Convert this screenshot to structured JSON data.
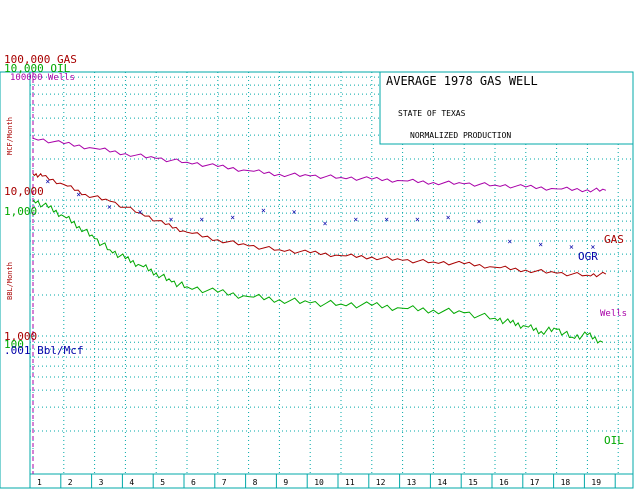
{
  "title_box": {
    "title": "AVERAGE 1978 GAS WELL",
    "line1": "STATE OF TEXAS",
    "line2": "NORMALIZED PRODUCTION"
  },
  "top_labels": {
    "gas": "100,000 GAS",
    "oil": "10,000 OIL",
    "wells": "100000 Wells"
  },
  "y_labels": {
    "mcf_axis": "MCF/Month",
    "bbl_axis": "BBL/Month",
    "gas_10000": "10,000",
    "oil_1000": "1,000",
    "gas_1000": "1,000",
    "oil_100": "100",
    "ogr": ".001 Bbl/Mcf"
  },
  "colors": {
    "grid": "#00a8a8",
    "gas": "#a80000",
    "oil": "#00a800",
    "wells": "#a800a8",
    "ogr": "#0000a8",
    "frame": "#00a8a8"
  },
  "chart_data": {
    "type": "line",
    "x": [
      1,
      2,
      3,
      4,
      5,
      6,
      7,
      8,
      9,
      10,
      11,
      12,
      13,
      14,
      15,
      16,
      17,
      18,
      19
    ],
    "xlabel_ticks": [
      "1",
      "2",
      "3",
      "4",
      "5",
      "6",
      "7",
      "8",
      "9",
      "10",
      "11",
      "12",
      "13",
      "14",
      "15",
      "16",
      "17",
      "18",
      "19"
    ],
    "series": [
      {
        "name": "GAS",
        "color": "#a80000",
        "x": [
          1.0,
          1.3,
          2.0,
          2.7,
          3.5,
          4.5,
          5.3,
          6.0,
          7.0,
          8.0,
          9.0,
          10.0,
          11.0,
          12.0,
          13.0,
          14.0,
          15.0,
          16.0,
          17.0,
          18.0,
          19.0,
          19.6
        ],
        "values": [
          15500,
          15000,
          13000,
          11000,
          9800,
          8000,
          6600,
          5800,
          5100,
          4600,
          4300,
          4100,
          3900,
          3800,
          3600,
          3500,
          3400,
          3200,
          3050,
          2900,
          2800,
          2850
        ]
      },
      {
        "name": "Wells",
        "color": "#a800a8",
        "x": [
          1.0,
          2.0,
          3.0,
          4.0,
          5.0,
          6.0,
          7.0,
          8.0,
          9.0,
          10.0,
          11.0,
          12.0,
          13.0,
          14.0,
          15.0,
          16.0,
          17.0,
          18.0,
          19.0,
          19.6
        ],
        "values": [
          2900,
          2650,
          2450,
          2250,
          2080,
          1950,
          1820,
          1700,
          1600,
          1560,
          1520,
          1480,
          1440,
          1400,
          1370,
          1340,
          1300,
          1260,
          1240,
          1230
        ]
      },
      {
        "name": "OIL",
        "color": "#00a800",
        "x": [
          1.0,
          1.5,
          2.0,
          2.5,
          3.0,
          3.5,
          4.0,
          4.5,
          5.0,
          5.5,
          6.0,
          7.0,
          8.0,
          9.0,
          10.0,
          11.0,
          12.0,
          13.0,
          14.0,
          15.0,
          16.0,
          16.5,
          17.0,
          17.5,
          18.0,
          18.5,
          19.0,
          19.5
        ],
        "values": [
          1000,
          880,
          760,
          640,
          520,
          430,
          370,
          330,
          290,
          250,
          230,
          210,
          195,
          185,
          175,
          172,
          168,
          160,
          155,
          148,
          135,
          125,
          118,
          108,
          112,
          98,
          102,
          90
        ]
      },
      {
        "name": "OGR",
        "color": "#0000a8",
        "x": [
          1.5,
          2.5,
          3.5,
          4.5,
          5.5,
          6.5,
          7.5,
          8.5,
          9.5,
          10.5,
          11.5,
          12.5,
          13.5,
          14.5,
          15.5,
          16.5,
          17.5,
          18.5,
          19.2
        ],
        "values": [
          0.0067,
          0.0057,
          0.0049,
          0.0046,
          0.0042,
          0.0042,
          0.0043,
          0.0047,
          0.0046,
          0.004,
          0.0042,
          0.0042,
          0.0042,
          0.0043,
          0.0041,
          0.0032,
          0.0031,
          0.003,
          0.003
        ]
      }
    ],
    "series_labels": [
      "GAS",
      "OGR",
      "Wells",
      "OIL"
    ],
    "y_scale": "log",
    "gas_axis": [
      1000,
      100000
    ],
    "oil_axis": [
      100,
      10000
    ],
    "grid": true
  }
}
